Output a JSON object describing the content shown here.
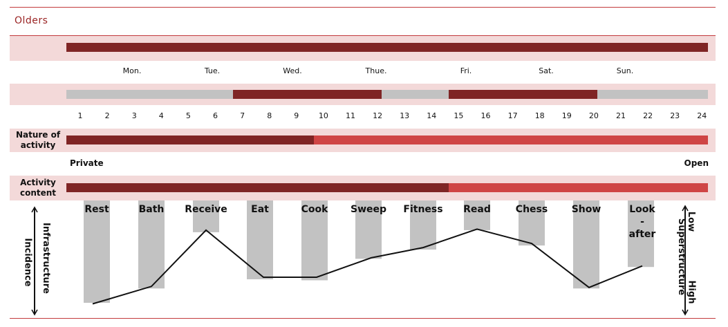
{
  "title": "Olders",
  "days": [
    "Mon.",
    "Tue.",
    "Wed.",
    "Thue.",
    "Fri.",
    "Sat.",
    "Sun."
  ],
  "hours": [
    "1",
    "2",
    "3",
    "4",
    "5",
    "6",
    "7",
    "8",
    "9",
    "10",
    "11",
    "12",
    "13",
    "14",
    "15",
    "16",
    "17",
    "18",
    "19",
    "20",
    "21",
    "22",
    "23",
    "24"
  ],
  "time_segments": [
    {
      "from": 1,
      "to": 7,
      "state": "off"
    },
    {
      "from": 7,
      "to": 12.5,
      "state": "on"
    },
    {
      "from": 12.5,
      "to": 15,
      "state": "off"
    },
    {
      "from": 15,
      "to": 20.5,
      "state": "on"
    },
    {
      "from": 20.5,
      "to": 24.2,
      "state": "off"
    }
  ],
  "nature_of_activity": {
    "label": "Nature of activity",
    "left_label": "Private",
    "right_label": "Open",
    "split_hour": 10
  },
  "activity_content": {
    "label": "Activity content",
    "split_hour": 15
  },
  "axis_left": {
    "label_outer": "Incidence",
    "label_inner": "Infrastructure"
  },
  "axis_right": {
    "label_outer": "Superstructure",
    "label_low": "Low",
    "label_high": "High"
  },
  "colors": {
    "dark": "#7f2525",
    "light": "#cf4545",
    "gray": "#c2c2c2",
    "band": "#f3d9d9",
    "rule": "#c2393b"
  },
  "chart_data": {
    "type": "bar",
    "categories": [
      "Rest",
      "Bath",
      "Receive",
      "Eat",
      "Cook",
      "Sweep",
      "Fitness",
      "Read",
      "Chess",
      "Show",
      "Look-after"
    ],
    "values": [
      1.0,
      0.86,
      0.31,
      0.77,
      0.78,
      0.57,
      0.48,
      0.29,
      0.44,
      0.86,
      0.65
    ],
    "line_values": [
      1.01,
      0.84,
      0.29,
      0.75,
      0.75,
      0.56,
      0.46,
      0.28,
      0.42,
      0.85,
      0.64
    ],
    "category_label_lines": [
      [
        "Rest"
      ],
      [
        "Bath"
      ],
      [
        "Receive"
      ],
      [
        "Eat"
      ],
      [
        "Cook"
      ],
      [
        "Sweep"
      ],
      [
        "Fitness"
      ],
      [
        "Read"
      ],
      [
        "Chess"
      ],
      [
        "Show"
      ],
      [
        "Look",
        "-",
        "after"
      ]
    ],
    "ylim": [
      0,
      1
    ],
    "y_scale_note": "Low at top, High at bottom"
  }
}
